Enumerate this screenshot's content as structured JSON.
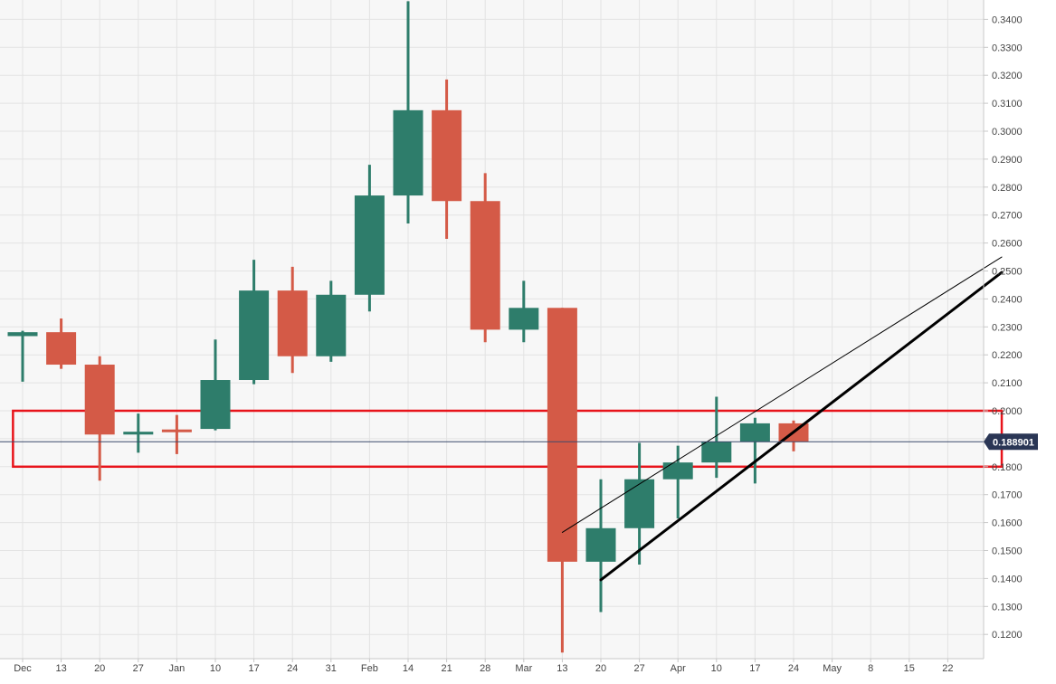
{
  "chart_data": {
    "type": "candlestick",
    "title": "",
    "xlabel": "",
    "ylabel": "",
    "ylim": [
      0.113,
      0.3475
    ],
    "grid": true,
    "colors": {
      "up": "#2e7d6b",
      "down": "#d45a47",
      "background": "#f7f7f7",
      "grid": "#e3e3e3",
      "zone": "#e8141b",
      "trendline": "#000000",
      "price_line": "#3b4a6b",
      "price_label_bg": "#2a3655"
    },
    "y_ticks": [
      "0.1200",
      "0.1300",
      "0.1400",
      "0.1500",
      "0.1600",
      "0.1700",
      "0.1800",
      "0.1900",
      "0.2000",
      "0.2100",
      "0.2200",
      "0.2300",
      "0.2400",
      "0.2500",
      "0.2600",
      "0.2700",
      "0.2800",
      "0.2900",
      "0.3000",
      "0.3100",
      "0.3200",
      "0.3300",
      "0.3400"
    ],
    "x_ticks": [
      {
        "label": "Dec",
        "week": 0
      },
      {
        "label": "13",
        "week": 1
      },
      {
        "label": "20",
        "week": 2
      },
      {
        "label": "27",
        "week": 3
      },
      {
        "label": "Jan",
        "week": 4
      },
      {
        "label": "10",
        "week": 5
      },
      {
        "label": "17",
        "week": 6
      },
      {
        "label": "24",
        "week": 7
      },
      {
        "label": "31",
        "week": 8
      },
      {
        "label": "Feb",
        "week": 9
      },
      {
        "label": "14",
        "week": 10
      },
      {
        "label": "21",
        "week": 11
      },
      {
        "label": "28",
        "week": 12
      },
      {
        "label": "Mar",
        "week": 13
      },
      {
        "label": "13",
        "week": 14
      },
      {
        "label": "20",
        "week": 15
      },
      {
        "label": "27",
        "week": 16
      },
      {
        "label": "Apr",
        "week": 17
      },
      {
        "label": "10",
        "week": 18
      },
      {
        "label": "17",
        "week": 19
      },
      {
        "label": "24",
        "week": 20
      },
      {
        "label": "May",
        "week": 21
      },
      {
        "label": "8",
        "week": 22
      },
      {
        "label": "15",
        "week": 23
      },
      {
        "label": "22",
        "week": 24
      }
    ],
    "candles": [
      {
        "week": 0,
        "open": 0.2267,
        "high": 0.2286,
        "low": 0.2104,
        "close": 0.2281
      },
      {
        "week": 1,
        "open": 0.2281,
        "high": 0.233,
        "low": 0.215,
        "close": 0.2165
      },
      {
        "week": 2,
        "open": 0.2165,
        "high": 0.2195,
        "low": 0.175,
        "close": 0.1915
      },
      {
        "week": 3,
        "open": 0.1915,
        "high": 0.199,
        "low": 0.185,
        "close": 0.1925
      },
      {
        "week": 4,
        "open": 0.1933,
        "high": 0.1985,
        "low": 0.1845,
        "close": 0.193
      },
      {
        "week": 5,
        "open": 0.1935,
        "high": 0.2255,
        "low": 0.193,
        "close": 0.211
      },
      {
        "week": 6,
        "open": 0.211,
        "high": 0.254,
        "low": 0.2095,
        "close": 0.243
      },
      {
        "week": 7,
        "open": 0.243,
        "high": 0.2515,
        "low": 0.2135,
        "close": 0.2195
      },
      {
        "week": 8,
        "open": 0.2195,
        "high": 0.2465,
        "low": 0.2175,
        "close": 0.2415
      },
      {
        "week": 9,
        "open": 0.2415,
        "high": 0.288,
        "low": 0.2355,
        "close": 0.277
      },
      {
        "week": 10,
        "open": 0.277,
        "high": 0.3465,
        "low": 0.267,
        "close": 0.3075
      },
      {
        "week": 11,
        "open": 0.3075,
        "high": 0.3185,
        "low": 0.2615,
        "close": 0.275
      },
      {
        "week": 12,
        "open": 0.275,
        "high": 0.285,
        "low": 0.2245,
        "close": 0.229
      },
      {
        "week": 13,
        "open": 0.229,
        "high": 0.2465,
        "low": 0.2245,
        "close": 0.2368
      },
      {
        "week": 14,
        "open": 0.2368,
        "high": 0.2368,
        "low": 0.1135,
        "close": 0.146
      },
      {
        "week": 15,
        "open": 0.146,
        "high": 0.1755,
        "low": 0.128,
        "close": 0.158
      },
      {
        "week": 16,
        "open": 0.158,
        "high": 0.1885,
        "low": 0.145,
        "close": 0.1755
      },
      {
        "week": 17,
        "open": 0.1755,
        "high": 0.1875,
        "low": 0.1615,
        "close": 0.1815
      },
      {
        "week": 18,
        "open": 0.1815,
        "high": 0.205,
        "low": 0.176,
        "close": 0.189
      },
      {
        "week": 19,
        "open": 0.189,
        "high": 0.1975,
        "low": 0.174,
        "close": 0.1955
      },
      {
        "week": 20,
        "open": 0.1955,
        "high": 0.1965,
        "low": 0.1855,
        "close": 0.1889
      }
    ],
    "current_price": 0.188901,
    "current_price_label": "0.188901",
    "annotations": {
      "zone": {
        "y_top": 0.2,
        "y_bottom": 0.18,
        "week_start": -0.25,
        "week_end": 25.4
      },
      "trendlines": [
        {
          "week_start": 14.0,
          "y_start": 0.1565,
          "week_end": 25.4,
          "y_end": 0.255,
          "weight": "thin"
        },
        {
          "week_start": 15.0,
          "y_start": 0.1395,
          "week_end": 25.4,
          "y_end": 0.2495,
          "weight": "thick"
        }
      ]
    }
  }
}
